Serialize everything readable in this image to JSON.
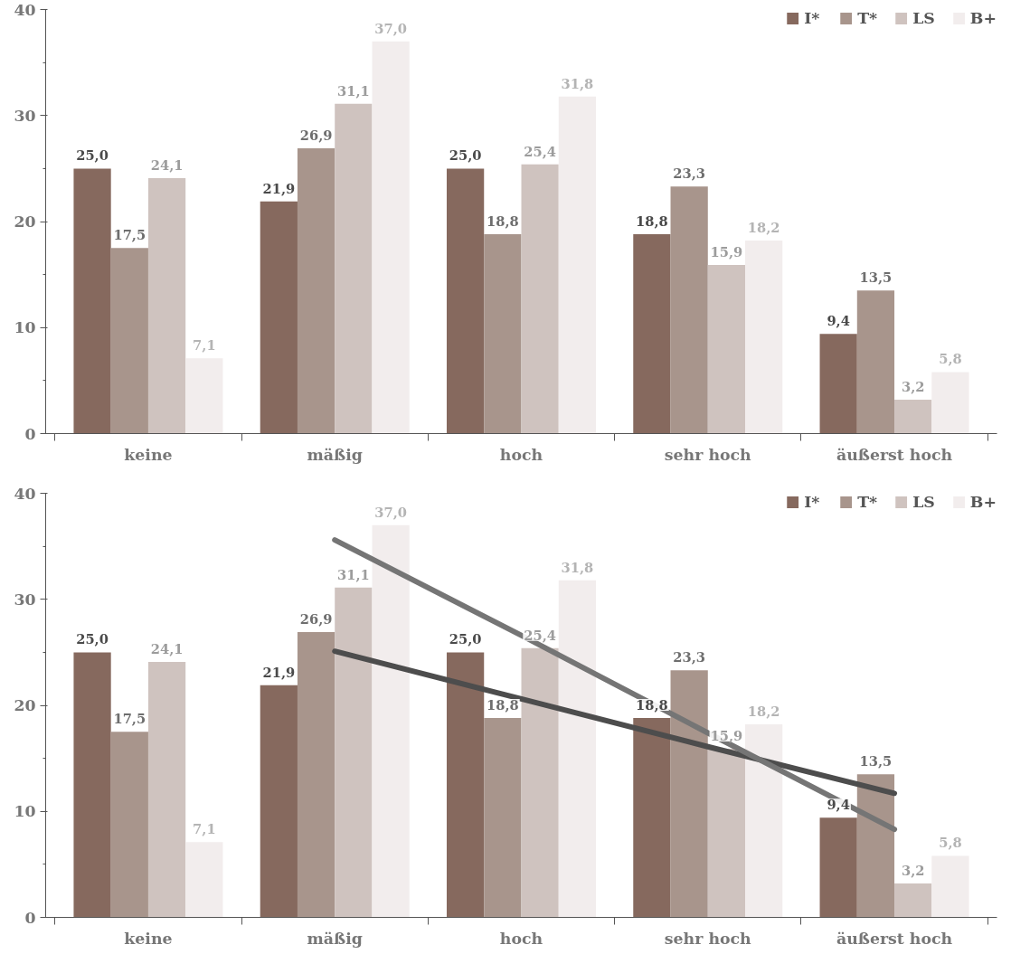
{
  "chart_data": [
    {
      "type": "bar",
      "categories": [
        "keine",
        "mäßig",
        "hoch",
        "sehr hoch",
        "äußerst hoch"
      ],
      "ylim": [
        0,
        40
      ],
      "yticks": [
        0,
        10,
        20,
        30,
        40
      ],
      "grid": false,
      "legend": "top right",
      "series": [
        {
          "name": "I*",
          "color": "#86695e",
          "values": [
            25.0,
            21.9,
            25.0,
            18.8,
            9.4
          ],
          "value_labels": [
            "25,0",
            "21,9",
            "25,0",
            "18,8",
            "9,4"
          ]
        },
        {
          "name": "T*",
          "color": "#a8958c",
          "values": [
            17.5,
            26.9,
            18.8,
            23.3,
            13.5
          ],
          "value_labels": [
            "17,5",
            "26,9",
            "18,8",
            "23,3",
            "13,5"
          ]
        },
        {
          "name": "LS",
          "color": "#cfc3bf",
          "values": [
            24.1,
            31.1,
            25.4,
            15.9,
            3.2
          ],
          "value_labels": [
            "24,1",
            "31,1",
            "25,4",
            "15,9",
            "3,2"
          ]
        },
        {
          "name": "B+",
          "color": "#f2eded",
          "values": [
            7.1,
            37.0,
            31.8,
            18.2,
            5.8
          ],
          "value_labels": [
            "7,1",
            "37,0",
            "31,8",
            "18,2",
            "5,8"
          ]
        }
      ]
    },
    {
      "type": "bar",
      "categories": [
        "keine",
        "mäßig",
        "hoch",
        "sehr hoch",
        "äußerst hoch"
      ],
      "ylim": [
        0,
        40
      ],
      "yticks": [
        0,
        10,
        20,
        30,
        40
      ],
      "grid": false,
      "legend": "top right",
      "series": [
        {
          "name": "I*",
          "color": "#86695e",
          "values": [
            25.0,
            21.9,
            25.0,
            18.8,
            9.4
          ],
          "value_labels": [
            "25,0",
            "21,9",
            "25,0",
            "18,8",
            "9,4"
          ]
        },
        {
          "name": "T*",
          "color": "#a8958c",
          "values": [
            17.5,
            26.9,
            18.8,
            23.3,
            13.5
          ],
          "value_labels": [
            "17,5",
            "26,9",
            "18,8",
            "23,3",
            "13,5"
          ]
        },
        {
          "name": "LS",
          "color": "#cfc3bf",
          "values": [
            24.1,
            31.1,
            25.4,
            15.9,
            3.2
          ],
          "value_labels": [
            "24,1",
            "31,1",
            "25,4",
            "15,9",
            "3,2"
          ]
        },
        {
          "name": "B+",
          "color": "#f2eded",
          "values": [
            7.1,
            37.0,
            31.8,
            18.2,
            5.8
          ],
          "value_labels": [
            "7,1",
            "37,0",
            "31,8",
            "18,2",
            "5,8"
          ]
        },
        {
          "type": "line",
          "color": "#4d4d4d",
          "values": [
            null,
            25.1,
            20.6,
            16.1,
            11.7
          ]
        },
        {
          "type": "line",
          "color": "#757575",
          "values": [
            null,
            35.6,
            26.6,
            17.4,
            8.3
          ]
        }
      ]
    }
  ]
}
